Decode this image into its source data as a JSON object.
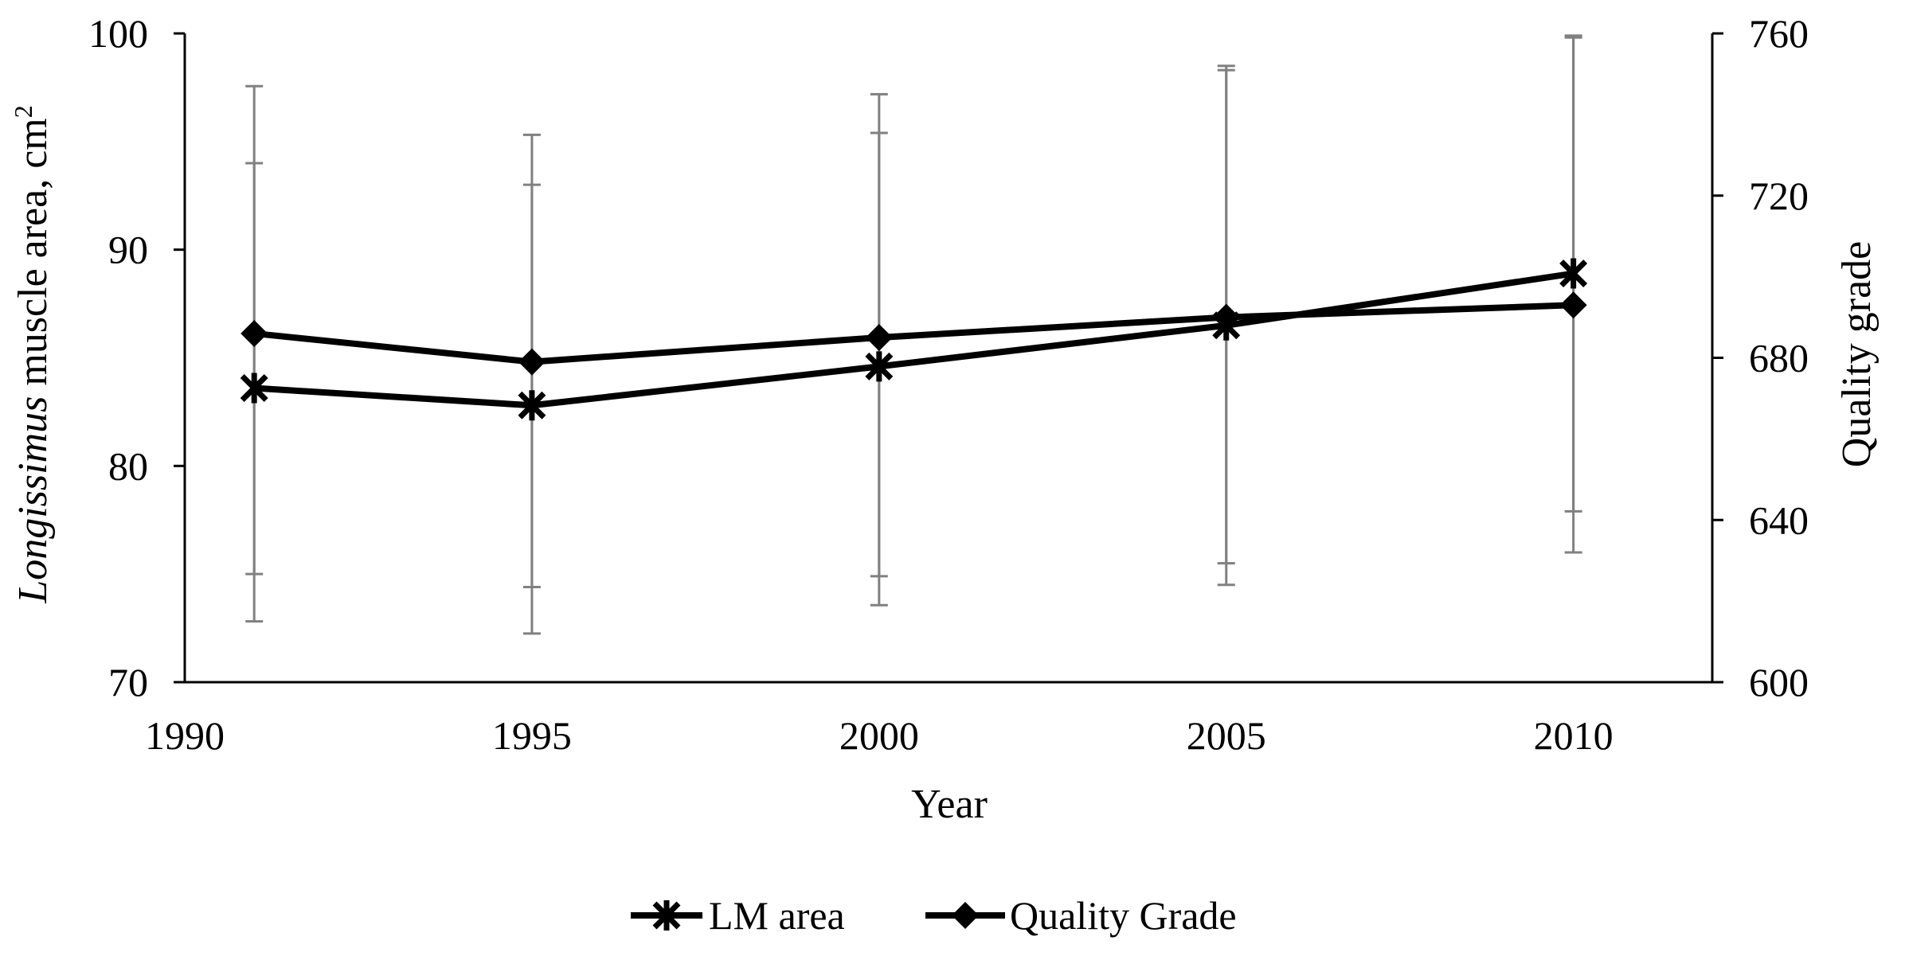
{
  "chart_data": {
    "type": "line",
    "xlabel": "Year",
    "ylabel": {
      "italic": "Longissimus",
      "rest": " muscle area, cm",
      "sup": "2"
    },
    "y2label": "Quality grade",
    "xlim": [
      1990,
      2012
    ],
    "ylim": [
      70,
      100
    ],
    "y2lim": [
      600,
      760
    ],
    "x_ticks": [
      1990,
      1995,
      2000,
      2005,
      2010
    ],
    "y_ticks": [
      70,
      80,
      90,
      100
    ],
    "y2_ticks": [
      600,
      640,
      680,
      720,
      760
    ],
    "grid": false,
    "legend_position": "bottom-center",
    "series": [
      {
        "name": "LM area",
        "axis": "left",
        "marker": "asterisk",
        "color": "#000000",
        "points": [
          {
            "x": 1991,
            "y": 83.6,
            "lo": 75.0,
            "hi": 94.0
          },
          {
            "x": 1995,
            "y": 82.8,
            "lo": 74.4,
            "hi": 93.0
          },
          {
            "x": 2000,
            "y": 84.6,
            "lo": 74.9,
            "hi": 95.4
          },
          {
            "x": 2005,
            "y": 86.5,
            "lo": 75.5,
            "hi": 98.3
          },
          {
            "x": 2010,
            "y": 88.9,
            "lo": 77.9,
            "hi": 99.9
          }
        ]
      },
      {
        "name": "Quality Grade",
        "axis": "right",
        "marker": "diamond",
        "color": "#000000",
        "points": [
          {
            "x": 1991,
            "y": 686,
            "lo": 615,
            "hi": 747
          },
          {
            "x": 1995,
            "y": 679,
            "lo": 612,
            "hi": 735
          },
          {
            "x": 2000,
            "y": 685,
            "lo": 619,
            "hi": 745
          },
          {
            "x": 2005,
            "y": 690,
            "lo": 624,
            "hi": 752
          },
          {
            "x": 2010,
            "y": 693,
            "lo": 632,
            "hi": 759
          }
        ]
      }
    ],
    "errorbar_color": "#808080"
  }
}
